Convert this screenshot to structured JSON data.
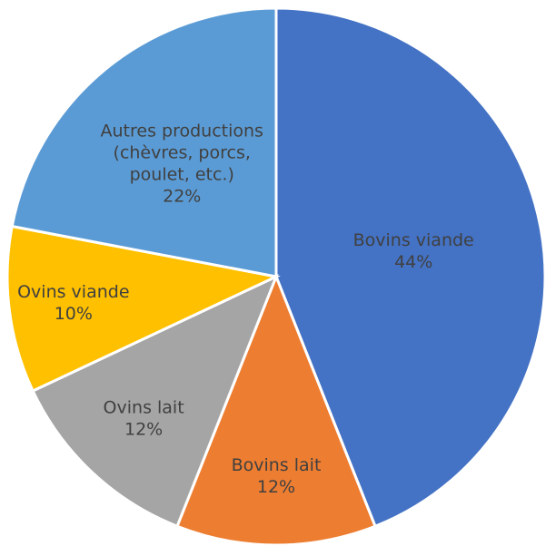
{
  "chart_data": {
    "type": "pie",
    "title": "",
    "start_angle_deg": 0,
    "direction": "clockwise",
    "slices": [
      {
        "label": "Bovins viande",
        "value": 44,
        "value_label": "44%",
        "color": "#4472C4"
      },
      {
        "label": "Bovins lait",
        "value": 12,
        "value_label": "12%",
        "color": "#ED7D31"
      },
      {
        "label": "Ovins lait",
        "value": 12,
        "value_label": "12%",
        "color": "#A5A5A5"
      },
      {
        "label": "Ovins viande",
        "value": 10,
        "value_label": "10%",
        "color": "#FFC000"
      },
      {
        "label": "Autres productions (chèvres, porcs, poulet, etc.)",
        "label_lines": [
          "Autres productions",
          "(chèvres, porcs,",
          "poulet, etc.)"
        ],
        "value": 22,
        "value_label": "22%",
        "color": "#5B9BD5"
      }
    ]
  }
}
